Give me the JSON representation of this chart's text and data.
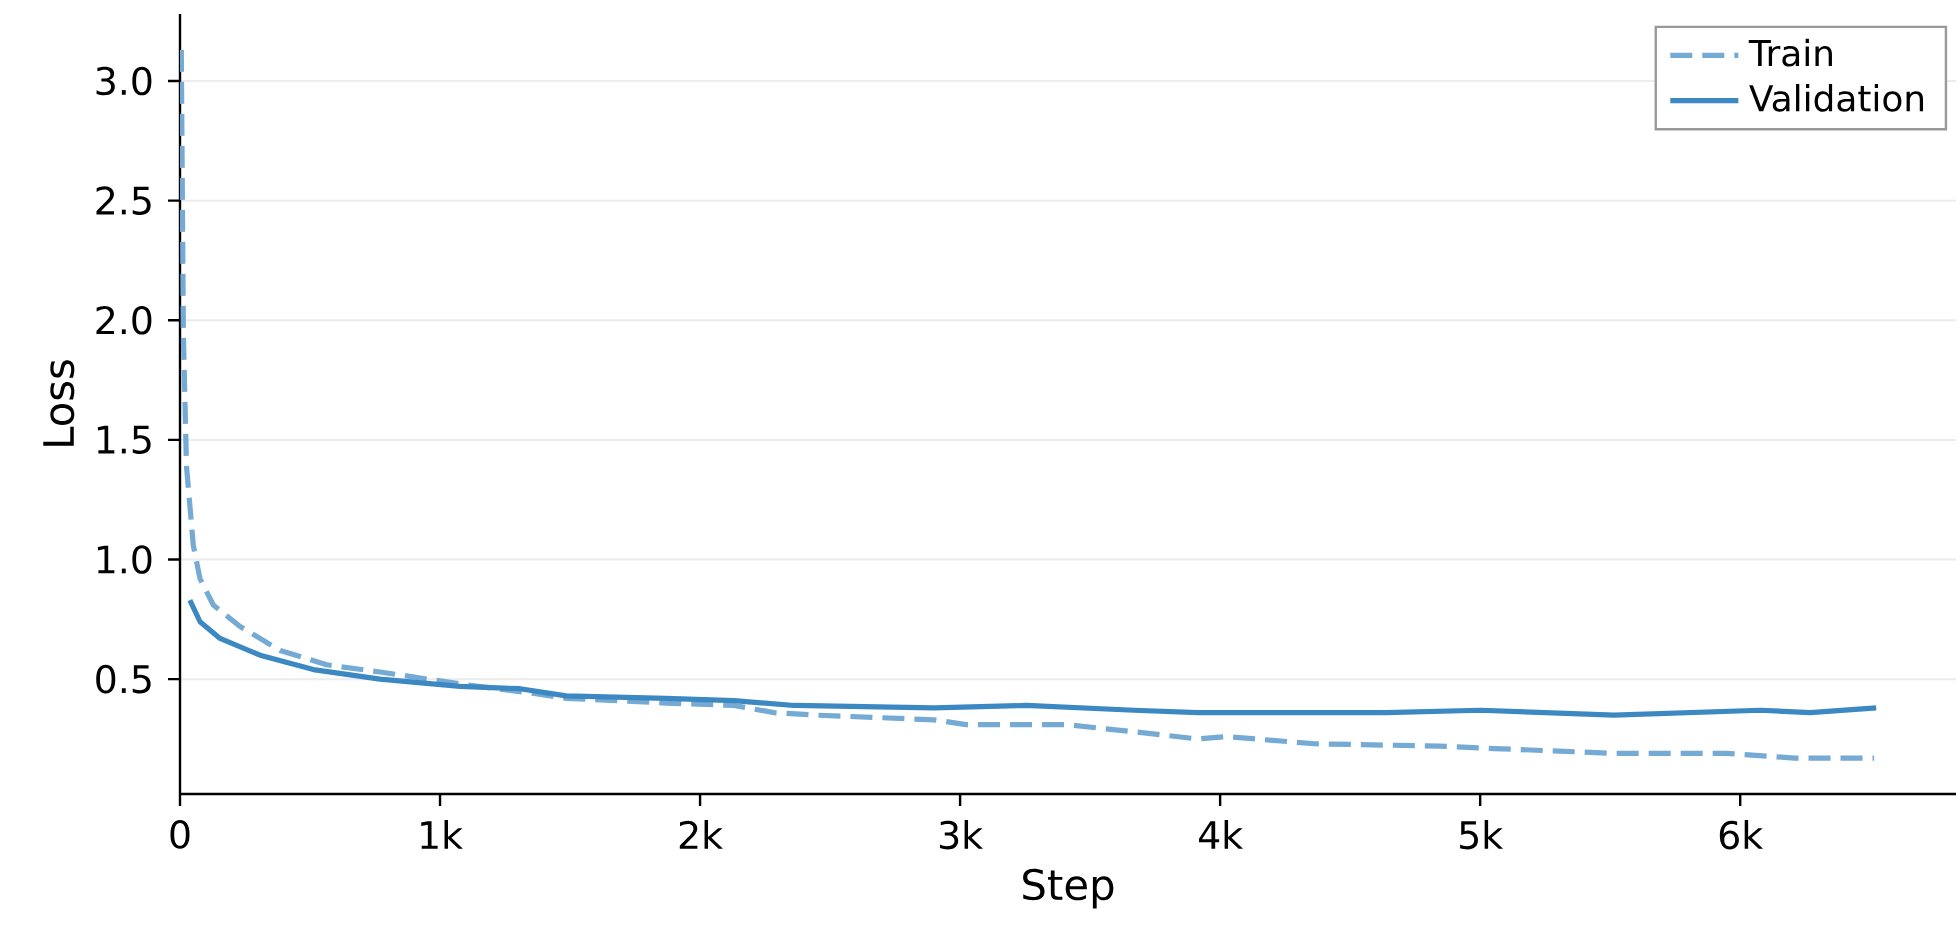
{
  "chart_data": {
    "type": "line",
    "xlabel": "Step",
    "ylabel": "Loss",
    "xlim": [
      0,
      6830
    ],
    "ylim": [
      0.02,
      3.28
    ],
    "xticks": [
      {
        "value": 0,
        "label": "0"
      },
      {
        "value": 1000,
        "label": "1k"
      },
      {
        "value": 2000,
        "label": "2k"
      },
      {
        "value": 3000,
        "label": "3k"
      },
      {
        "value": 4000,
        "label": "4k"
      },
      {
        "value": 5000,
        "label": "5k"
      },
      {
        "value": 6000,
        "label": "6k"
      }
    ],
    "yticks": [
      0.5,
      {
        "value": 1,
        "label": "1.0"
      },
      1.5,
      {
        "value": 2,
        "label": "2.0"
      },
      2.5,
      {
        "value": 3,
        "label": "3.0"
      }
    ],
    "grid": "y",
    "legend": "top right",
    "series": [
      {
        "name": "Train",
        "color": "#74aad3",
        "line_style": "dashed",
        "x": [
          5,
          13,
          25,
          51,
          77,
          128,
          231,
          385,
          564,
          769,
          1077,
          1362,
          1485,
          1869,
          2131,
          2285,
          2438,
          2900,
          3023,
          3408,
          3669,
          3915,
          4023,
          4362,
          4846,
          5054,
          5515,
          5946,
          6208,
          6515
        ],
        "values": [
          3.13,
          1.94,
          1.39,
          1.06,
          0.92,
          0.81,
          0.72,
          0.62,
          0.56,
          0.53,
          0.48,
          0.44,
          0.42,
          0.4,
          0.39,
          0.36,
          0.35,
          0.33,
          0.31,
          0.31,
          0.28,
          0.25,
          0.26,
          0.23,
          0.22,
          0.21,
          0.19,
          0.19,
          0.17,
          0.17
        ]
      },
      {
        "name": "Validation",
        "color": "#3c88c2",
        "line_style": "solid",
        "x": [
          38,
          77,
          154,
          308,
          513,
          769,
          1077,
          1308,
          1485,
          1869,
          2131,
          2362,
          2900,
          3254,
          3669,
          3915,
          4231,
          4638,
          5000,
          5515,
          6077,
          6269,
          6523
        ],
        "values": [
          0.83,
          0.74,
          0.67,
          0.6,
          0.54,
          0.5,
          0.47,
          0.46,
          0.43,
          0.42,
          0.41,
          0.39,
          0.38,
          0.39,
          0.37,
          0.36,
          0.36,
          0.36,
          0.37,
          0.35,
          0.37,
          0.36,
          0.38
        ]
      }
    ]
  }
}
